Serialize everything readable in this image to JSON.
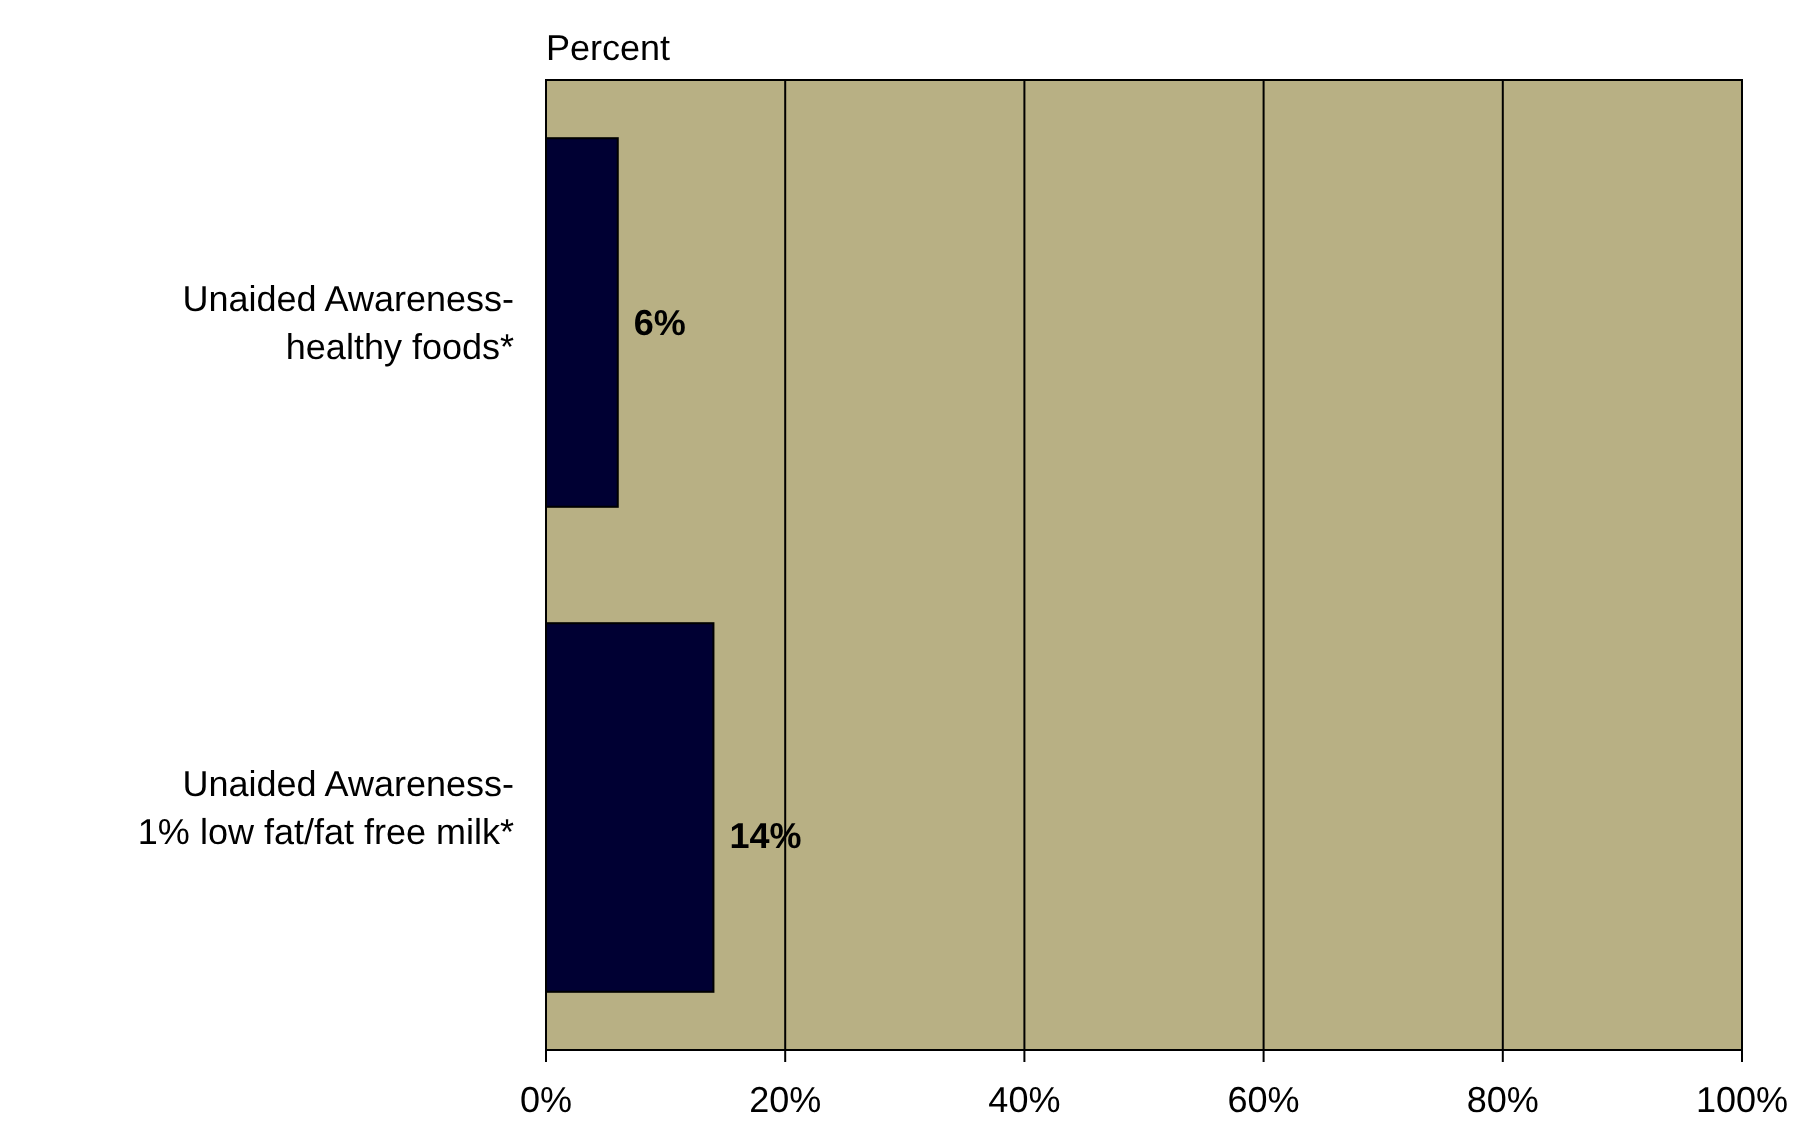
{
  "chart_data": {
    "type": "bar",
    "orientation": "horizontal",
    "xlabel": "Percent",
    "categories": [
      "Unaided Awareness-\nhealthy foods*",
      "Unaided Awareness-\n1% low fat/fat free milk*"
    ],
    "values": [
      6,
      14
    ],
    "color": "#000033",
    "value_labels": [
      "6%",
      "14%"
    ],
    "xlim": [
      0,
      100
    ],
    "xticks": [
      {
        "value": 0,
        "label": "0%"
      },
      {
        "value": 20,
        "label": "20%"
      },
      {
        "value": 40,
        "label": "40%"
      },
      {
        "value": 60,
        "label": "60%"
      },
      {
        "value": 80,
        "label": "80%"
      },
      {
        "value": 100,
        "label": "100%"
      }
    ],
    "grid": "x"
  }
}
